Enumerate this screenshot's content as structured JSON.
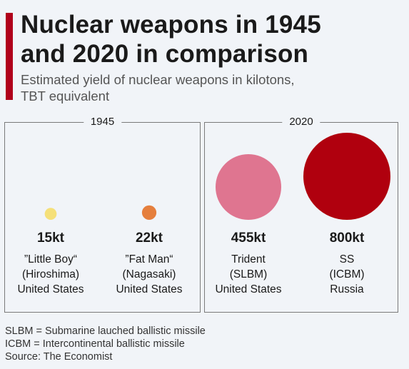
{
  "header": {
    "title_line1": "Nuclear weapons in 1945",
    "title_line2": "and 2020 in comparison",
    "subtitle_line1": "Estimated yield of nuclear weapons in kilotons,",
    "subtitle_line2": "TBT equivalent"
  },
  "panels": [
    {
      "year": "1945"
    },
    {
      "year": "2020"
    }
  ],
  "chart_data": {
    "type": "bubble",
    "title": "Nuclear weapons in 1945 and 2020 in comparison",
    "subtitle": "Estimated yield of nuclear weapons in kilotons, TBT equivalent",
    "unit": "kt",
    "groups": [
      "1945",
      "2020"
    ],
    "items": [
      {
        "group": "1945",
        "yield_label": "15kt",
        "value": 15,
        "name_line1": "”Little Boy“",
        "name_line2": "(Hiroshima)",
        "country": "United States",
        "color": "#f5e079"
      },
      {
        "group": "1945",
        "yield_label": "22kt",
        "value": 22,
        "name_line1": "”Fat Man“",
        "name_line2": "(Nagasaki)",
        "country": "United States",
        "color": "#e57f3d"
      },
      {
        "group": "2020",
        "yield_label": "455kt",
        "value": 455,
        "name_line1": "Trident",
        "name_line2": "(SLBM)",
        "country": "United States",
        "color": "#df7590"
      },
      {
        "group": "2020",
        "yield_label": "800kt",
        "value": 800,
        "name_line1": "SS",
        "name_line2": "(ICBM)",
        "country": "Russia",
        "color": "#b0000e"
      }
    ]
  },
  "footer": {
    "note1": "SLBM = Submarine lauched ballistic missile",
    "note2": "ICBM = Intercontinental ballistic missile",
    "source": "Source: The Economist"
  },
  "colors": {
    "accent": "#b0001b",
    "background": "#f1f4f8"
  }
}
